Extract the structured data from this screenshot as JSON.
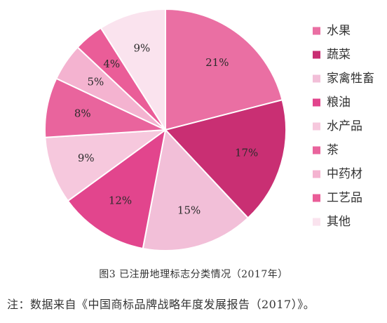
{
  "figure_caption": "图3 已注册地理标志分类情况（2017年）",
  "source_note": "注：数据来自《中国商标品牌战略年度发展报告（2017）》。",
  "chart_data": {
    "type": "pie",
    "title": "",
    "start_angle_deg": 0,
    "direction": "clockwise",
    "legend_position": "right",
    "slices": [
      {
        "name": "水果",
        "value": 21,
        "label": "21%",
        "color": "#ea6fa3"
      },
      {
        "name": "蔬菜",
        "value": 17,
        "label": "17%",
        "color": "#c92f73"
      },
      {
        "name": "家禽牲畜",
        "value": 15,
        "label": "15%",
        "color": "#f2bfd8"
      },
      {
        "name": "粮油",
        "value": 12,
        "label": "12%",
        "color": "#e2458d"
      },
      {
        "name": "水产品",
        "value": 9,
        "label": "9%",
        "color": "#f6c8dd"
      },
      {
        "name": "茶",
        "value": 8,
        "label": "8%",
        "color": "#e9649d"
      },
      {
        "name": "中药材",
        "value": 5,
        "label": "5%",
        "color": "#f4b3d0"
      },
      {
        "name": "工艺品",
        "value": 4,
        "label": "4%",
        "color": "#ea5d98"
      },
      {
        "name": "其他",
        "value": 9,
        "label": "9%",
        "color": "#fae3ee"
      }
    ]
  }
}
